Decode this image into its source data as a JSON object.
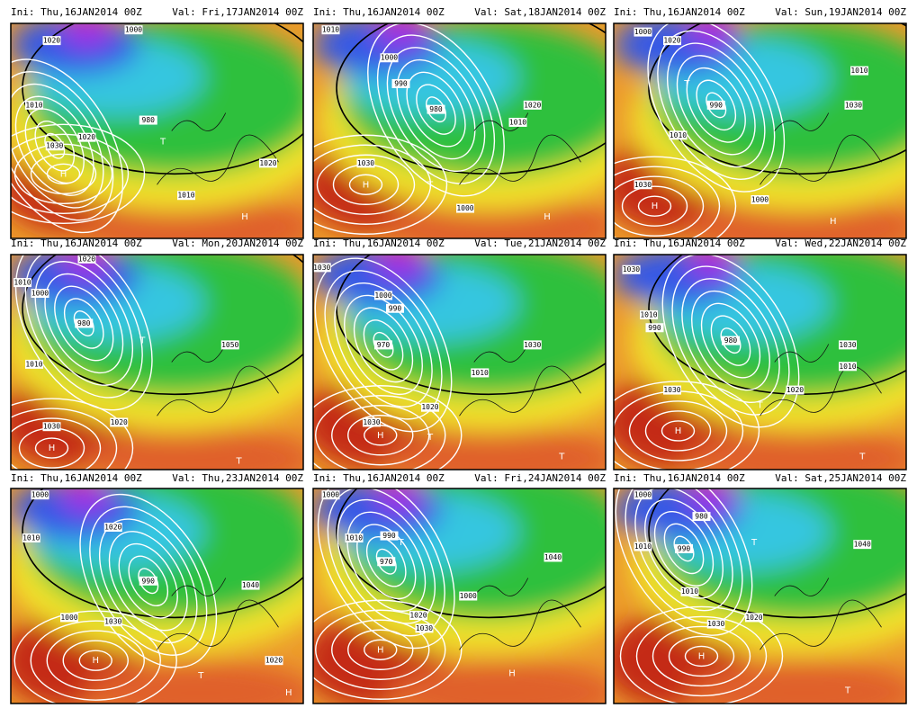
{
  "panels": [
    {
      "init": "Ini: Thu,16JAN2014 00Z",
      "valid": "Val: Fri,17JAN2014 00Z",
      "labels": [
        "1000",
        "1020",
        "1010",
        "1030",
        "1020",
        "980",
        "1020",
        "1010"
      ],
      "centers": [
        "H",
        "T",
        "H"
      ]
    },
    {
      "init": "Ini: Thu,16JAN2014 00Z",
      "valid": "Val: Sat,18JAN2014 00Z",
      "labels": [
        "1010",
        "1000",
        "990",
        "980",
        "1030",
        "1020",
        "1010",
        "1000"
      ],
      "centers": [
        "H",
        "T",
        "H"
      ]
    },
    {
      "init": "Ini: Thu,16JAN2014 00Z",
      "valid": "Val: Sun,19JAN2014 00Z",
      "labels": [
        "1000",
        "1020",
        "1010",
        "990",
        "1030",
        "1010",
        "1030",
        "1000"
      ],
      "centers": [
        "H",
        "T",
        "H"
      ]
    },
    {
      "init": "Ini: Thu,16JAN2014 00Z",
      "valid": "Val: Mon,20JAN2014 00Z",
      "labels": [
        "1020",
        "1010",
        "1000",
        "980",
        "1010",
        "1030",
        "1020",
        "1050"
      ],
      "centers": [
        "H",
        "T",
        "T"
      ]
    },
    {
      "init": "Ini: Thu,16JAN2014 00Z",
      "valid": "Val: Tue,21JAN2014 00Z",
      "labels": [
        "1030",
        "1000",
        "990",
        "970",
        "1020",
        "1030",
        "1010",
        "1030"
      ],
      "centers": [
        "H",
        "T",
        "T"
      ]
    },
    {
      "init": "Ini: Thu,16JAN2014 00Z",
      "valid": "Val: Wed,22JAN2014 00Z",
      "labels": [
        "1030",
        "1010",
        "990",
        "980",
        "1030",
        "1020",
        "1010",
        "1030"
      ],
      "centers": [
        "H",
        "T",
        "T"
      ]
    },
    {
      "init": "Ini: Thu,16JAN2014 00Z",
      "valid": "Val: Thu,23JAN2014 00Z",
      "labels": [
        "1000",
        "1020",
        "1010",
        "990",
        "1000",
        "1030",
        "1020",
        "1040"
      ],
      "centers": [
        "H",
        "T",
        "H"
      ]
    },
    {
      "init": "Ini: Thu,16JAN2014 00Z",
      "valid": "Val: Fri,24JAN2014 00Z",
      "labels": [
        "1000",
        "1010",
        "990",
        "970",
        "1030",
        "1020",
        "1000",
        "1040"
      ],
      "centers": [
        "H",
        "T",
        "H"
      ]
    },
    {
      "init": "Ini: Thu,16JAN2014 00Z",
      "valid": "Val: Sat,25JAN2014 00Z",
      "labels": [
        "1000",
        "1010",
        "980",
        "990",
        "1010",
        "1030",
        "1020",
        "1040"
      ],
      "centers": [
        "H",
        "T",
        "T"
      ]
    }
  ]
}
